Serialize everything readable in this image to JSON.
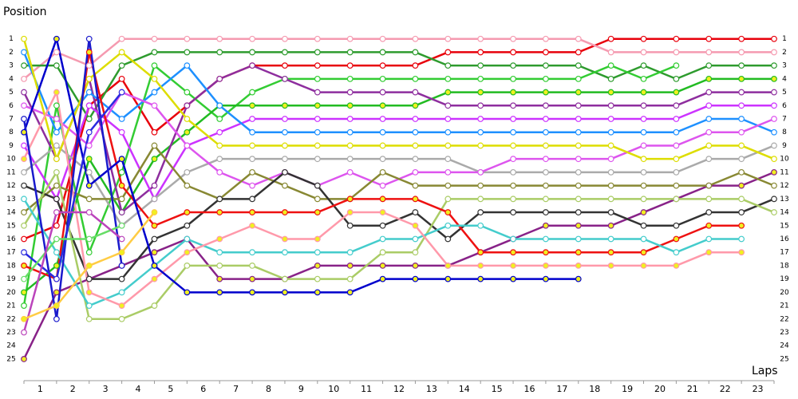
{
  "chart_data": {
    "type": "lap",
    "title": "Position",
    "x_label": "Laps",
    "x": [
      0,
      1,
      2,
      3,
      4,
      5,
      6,
      7,
      8,
      9,
      10,
      11,
      12,
      13,
      14,
      15,
      16,
      17,
      18,
      19,
      20,
      21,
      22,
      23
    ],
    "xlim": [
      0,
      23
    ],
    "xticks": [
      {
        "value": 0.5,
        "label": "1"
      },
      {
        "value": 1.5,
        "label": "2"
      },
      {
        "value": 2.5,
        "label": "3"
      },
      {
        "value": 3.5,
        "label": "4"
      },
      {
        "value": 4.5,
        "label": "5"
      },
      {
        "value": 5.5,
        "label": "6"
      },
      {
        "value": 6.5,
        "label": "7"
      },
      {
        "value": 7.5,
        "label": "8"
      },
      {
        "value": 8.5,
        "label": "9"
      },
      {
        "value": 9.5,
        "label": "10"
      },
      {
        "value": 10.5,
        "label": "11"
      },
      {
        "value": 11.5,
        "label": "12"
      },
      {
        "value": 12.5,
        "label": "13"
      },
      {
        "value": 13.5,
        "label": "14"
      },
      {
        "value": 14.5,
        "label": "15"
      },
      {
        "value": 15.5,
        "label": "16"
      },
      {
        "value": 16.5,
        "label": "17"
      },
      {
        "value": 17.5,
        "label": "18"
      },
      {
        "value": 18.5,
        "label": "19"
      },
      {
        "value": 19.5,
        "label": "20"
      },
      {
        "value": 20.5,
        "label": "21"
      },
      {
        "value": 21.5,
        "label": "22"
      },
      {
        "value": 22.5,
        "label": "23"
      }
    ],
    "ylim": [
      0,
      26.5
    ],
    "y_inverted": true,
    "yticks": [
      1,
      2,
      3,
      4,
      5,
      6,
      7,
      8,
      9,
      10,
      11,
      12,
      13,
      14,
      15,
      16,
      17,
      18,
      19,
      20,
      21,
      22,
      23,
      24,
      25
    ],
    "right_axis": true,
    "series": [
      {
        "color": "#e8000b",
        "marker_fill": "#ffffff",
        "values": [
          16,
          15,
          6,
          4,
          8,
          6,
          4,
          3,
          3,
          3,
          3,
          3,
          3,
          2,
          2,
          2,
          2,
          2,
          1,
          1,
          1,
          1,
          1,
          1
        ]
      },
      {
        "color": "#f59ab0",
        "marker_fill": "#ffffff",
        "values": [
          4,
          2,
          3,
          1,
          1,
          1,
          1,
          1,
          1,
          1,
          1,
          1,
          1,
          1,
          1,
          1,
          1,
          1,
          2,
          2,
          2,
          2,
          2,
          2
        ]
      },
      {
        "color": "#2e9b2e",
        "marker_fill": "#ffffff",
        "values": [
          3,
          3,
          7,
          3,
          2,
          2,
          2,
          2,
          2,
          2,
          2,
          2,
          2,
          3,
          3,
          3,
          3,
          3,
          4,
          3,
          4,
          3,
          3,
          3
        ]
      },
      {
        "color": "#33cc33",
        "marker_fill": "#ffffff",
        "values": [
          21,
          6,
          17,
          11,
          3,
          5,
          7,
          5,
          4,
          4,
          4,
          4,
          4,
          4,
          4,
          4,
          4,
          4,
          3,
          4,
          3,
          null,
          null,
          null
        ]
      },
      {
        "color": "#22bb22",
        "marker_fill": "#f0f020",
        "values": [
          20,
          18,
          10,
          14,
          10,
          8,
          6,
          6,
          6,
          6,
          6,
          6,
          6,
          5,
          5,
          5,
          5,
          5,
          5,
          5,
          5,
          4,
          4,
          4
        ]
      },
      {
        "color": "#8e2e9e",
        "marker_fill": "#ffffff",
        "values": [
          5,
          10,
          4,
          14,
          12,
          6,
          4,
          3,
          4,
          5,
          5,
          5,
          5,
          6,
          6,
          6,
          6,
          6,
          6,
          6,
          6,
          5,
          5,
          5
        ]
      },
      {
        "color": "#cc33ff",
        "marker_fill": "#ffffff",
        "values": [
          9,
          13,
          6,
          8,
          13,
          9,
          8,
          7,
          7,
          7,
          7,
          7,
          7,
          7,
          7,
          7,
          7,
          7,
          7,
          7,
          7,
          6,
          6,
          6
        ]
      },
      {
        "color": "#1e90ff",
        "marker_fill": "#ffffff",
        "values": [
          2,
          8,
          5,
          7,
          5,
          3,
          6,
          8,
          8,
          8,
          8,
          8,
          8,
          8,
          8,
          8,
          8,
          8,
          8,
          8,
          8,
          7,
          7,
          8
        ]
      },
      {
        "color": "#aaaaaa",
        "marker_fill": "#ffffff",
        "values": [
          11,
          9,
          11,
          15,
          13,
          11,
          10,
          10,
          10,
          10,
          10,
          10,
          10,
          10,
          11,
          11,
          11,
          11,
          11,
          11,
          11,
          10,
          10,
          9
        ]
      },
      {
        "color": "#dd55ee",
        "marker_fill": "#ffffff",
        "values": [
          6,
          7,
          9,
          5,
          6,
          9,
          11,
          12,
          11,
          12,
          11,
          12,
          11,
          11,
          11,
          10,
          10,
          10,
          10,
          9,
          9,
          8,
          8,
          7
        ]
      },
      {
        "color": "#dddd00",
        "marker_fill": "#ffffff",
        "values": [
          1,
          10,
          4,
          2,
          4,
          7,
          9,
          9,
          9,
          9,
          9,
          9,
          9,
          9,
          9,
          9,
          9,
          9,
          9,
          10,
          10,
          9,
          9,
          10
        ]
      },
      {
        "color": "#882288",
        "marker_fill": "#f0f020",
        "values": [
          25,
          20,
          19,
          18,
          17,
          16,
          19,
          19,
          19,
          18,
          18,
          18,
          18,
          18,
          17,
          16,
          15,
          15,
          15,
          14,
          13,
          12,
          12,
          11
        ]
      },
      {
        "color": "#888833",
        "marker_fill": "#ffffff",
        "values": [
          14,
          12,
          13,
          13,
          9,
          12,
          13,
          11,
          12,
          13,
          13,
          11,
          12,
          12,
          12,
          12,
          12,
          12,
          12,
          12,
          12,
          12,
          11,
          12
        ]
      },
      {
        "color": "#333333",
        "marker_fill": "#ffffff",
        "values": [
          12,
          13,
          19,
          19,
          16,
          15,
          13,
          13,
          11,
          12,
          15,
          15,
          14,
          16,
          14,
          14,
          14,
          14,
          14,
          15,
          15,
          14,
          14,
          13
        ]
      },
      {
        "color": "#aacc66",
        "marker_fill": "#ffffff",
        "values": [
          15,
          11,
          22,
          22,
          21,
          18,
          18,
          18,
          19,
          19,
          19,
          17,
          17,
          13,
          13,
          13,
          13,
          13,
          13,
          13,
          13,
          13,
          13,
          14
        ]
      },
      {
        "color": "#ee1111",
        "marker_fill": "#f0f020",
        "values": [
          18,
          19,
          2,
          12,
          15,
          14,
          14,
          14,
          14,
          14,
          13,
          13,
          13,
          14,
          17,
          17,
          17,
          17,
          17,
          17,
          16,
          15,
          15,
          null
        ]
      },
      {
        "color": "#44cccc",
        "marker_fill": "#ffffff",
        "values": [
          13,
          17,
          21,
          20,
          18,
          16,
          17,
          17,
          17,
          17,
          17,
          16,
          16,
          15,
          15,
          16,
          16,
          16,
          16,
          16,
          17,
          16,
          16,
          null
        ]
      },
      {
        "color": "#ff99aa",
        "marker_fill": "#f0f020",
        "values": [
          10,
          5,
          20,
          21,
          19,
          17,
          16,
          15,
          16,
          16,
          14,
          14,
          15,
          18,
          18,
          18,
          18,
          18,
          18,
          18,
          18,
          17,
          17,
          null
        ]
      },
      {
        "color": "#0000cc",
        "marker_fill": "#f0f020",
        "values": [
          8,
          1,
          12,
          10,
          18,
          20,
          20,
          20,
          20,
          20,
          20,
          19,
          19,
          19,
          19,
          19,
          19,
          19,
          null,
          null,
          null,
          null,
          null,
          null
        ]
      },
      {
        "color": "#1a1acc",
        "marker_fill": "#ffffff",
        "values": [
          7,
          22,
          1,
          18,
          null,
          null,
          null,
          null,
          null,
          null,
          null,
          null,
          null,
          null,
          null,
          null,
          null,
          null,
          null,
          null,
          null,
          null,
          null,
          null
        ]
      },
      {
        "color": "#2a2adf",
        "marker_fill": "#ffffff",
        "values": [
          17,
          19,
          8,
          5,
          null,
          null,
          null,
          null,
          null,
          null,
          null,
          null,
          null,
          null,
          null,
          null,
          null,
          null,
          null,
          null,
          null,
          null,
          null,
          null
        ]
      },
      {
        "color": "#66dd66",
        "marker_fill": "#ffffff",
        "values": [
          19,
          16,
          16,
          15,
          null,
          null,
          null,
          null,
          null,
          null,
          null,
          null,
          null,
          null,
          null,
          null,
          null,
          null,
          null,
          null,
          null,
          null,
          null,
          null
        ]
      },
      {
        "color": "#bb44bb",
        "marker_fill": "#ffffff",
        "values": [
          23,
          14,
          14,
          16,
          null,
          null,
          null,
          null,
          null,
          null,
          null,
          null,
          null,
          null,
          null,
          null,
          null,
          null,
          null,
          null,
          null,
          null,
          null,
          null
        ]
      },
      {
        "color": "#ffcc44",
        "marker_fill": "#f0f020",
        "values": [
          22,
          21,
          18,
          17,
          14,
          null,
          null,
          null,
          null,
          null,
          null,
          null,
          null,
          null,
          null,
          null,
          null,
          null,
          null,
          null,
          null,
          null,
          null,
          null
        ]
      }
    ]
  }
}
